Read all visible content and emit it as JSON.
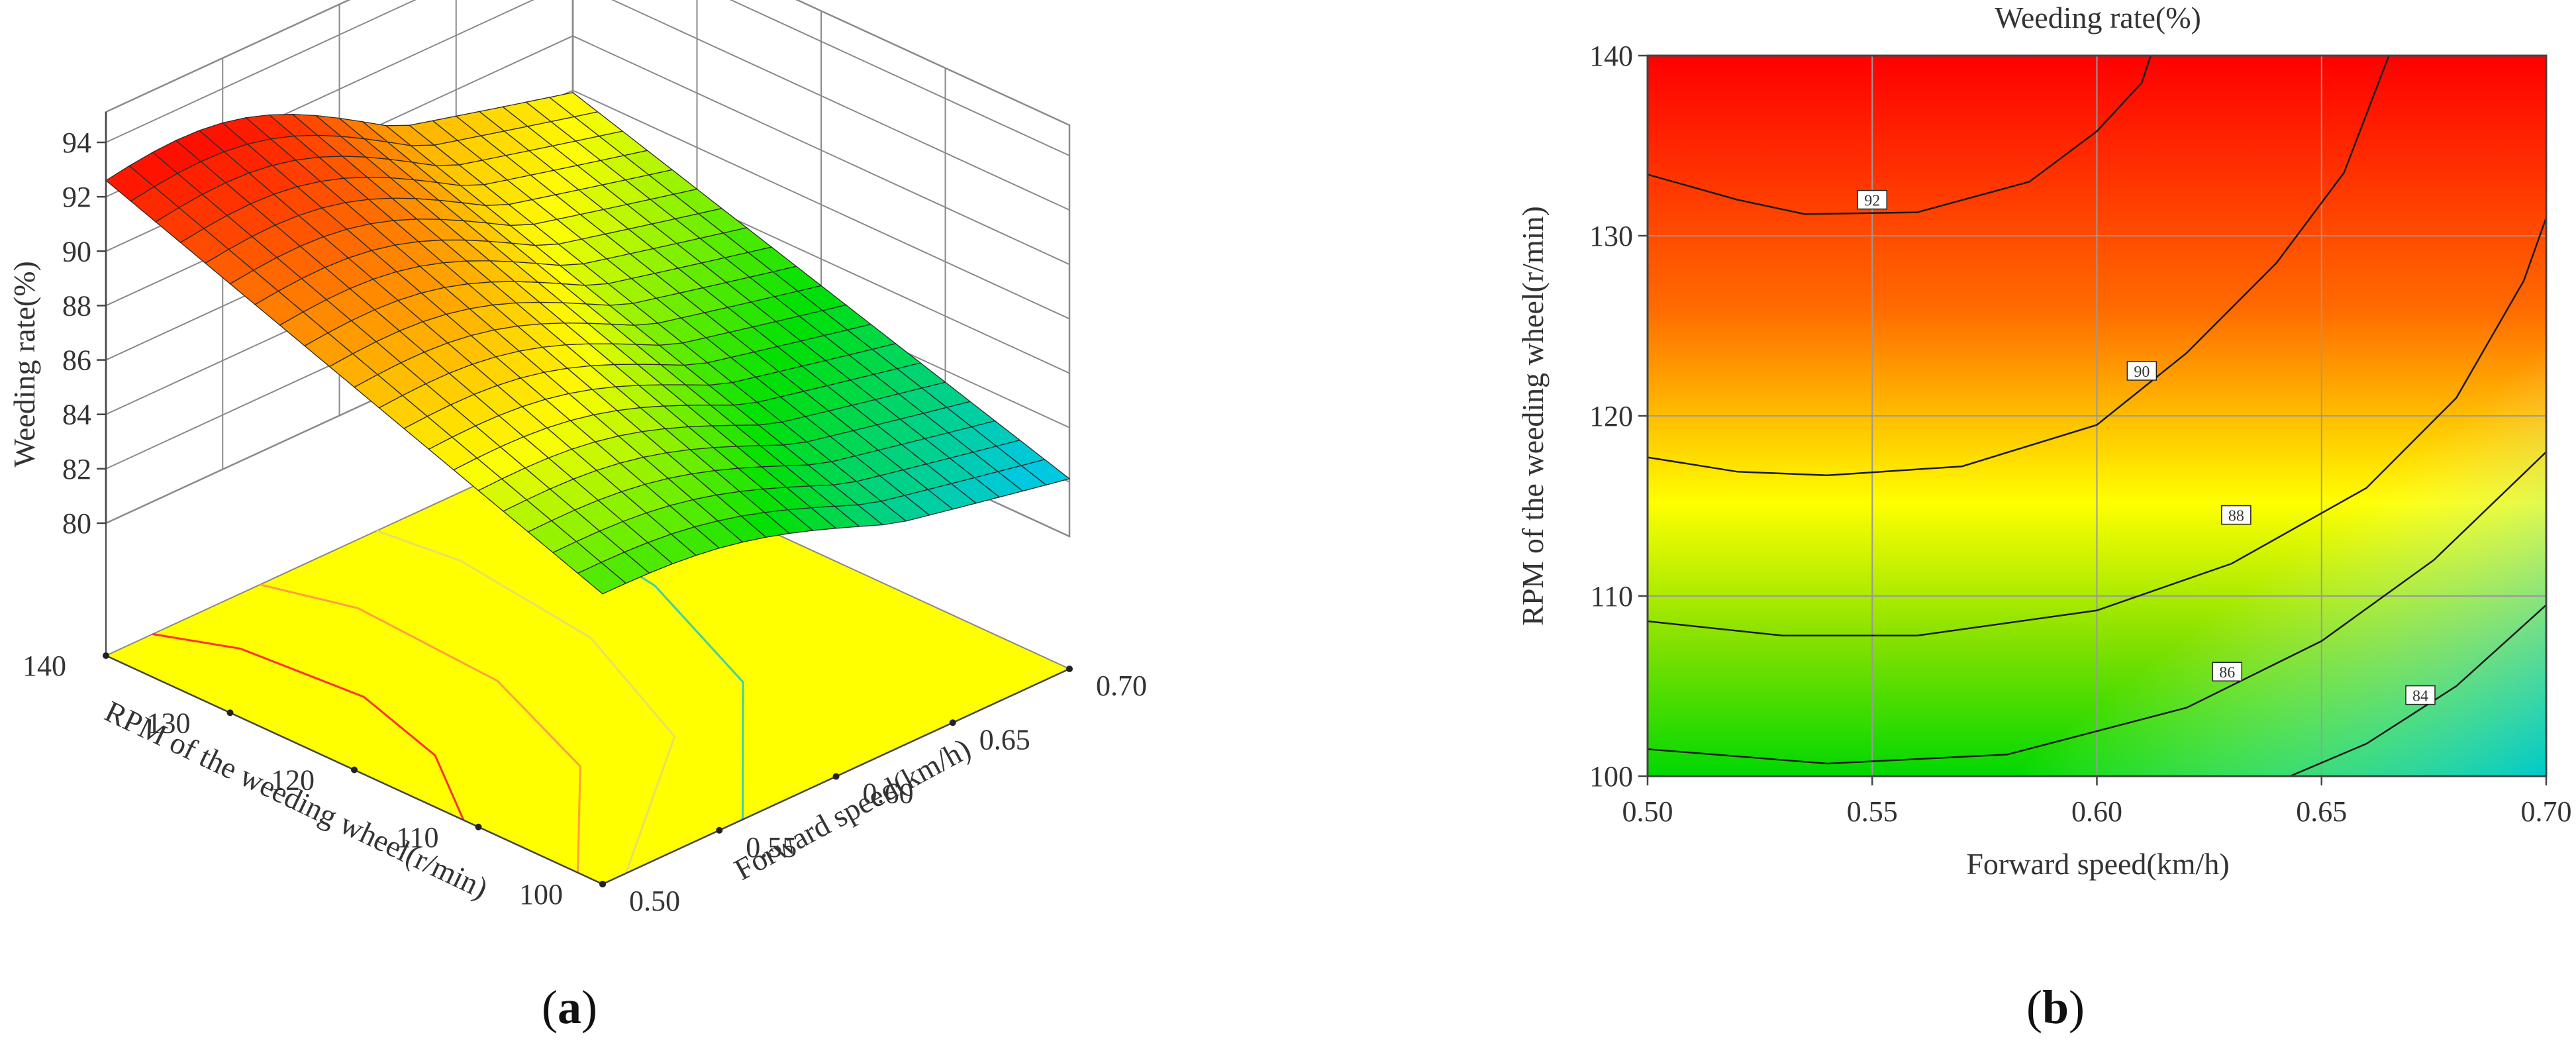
{
  "chart_data": [
    {
      "panel": "(a)",
      "type": "surface3d",
      "zlabel": "Weeding rate(%)",
      "xlabel": "Forward speed(km/h)",
      "ylabel": "RPM of the weeding wheel(r/min)",
      "x_ticks": [
        "0.50",
        "0.55",
        "0.60",
        "0.65",
        "0.70"
      ],
      "y_ticks": [
        "100",
        "110",
        "120",
        "130",
        "140"
      ],
      "z_ticks": [
        "80",
        "82",
        "84",
        "86",
        "88",
        "90",
        "92",
        "94"
      ],
      "xlim": [
        0.5,
        0.7
      ],
      "ylim": [
        100,
        140
      ],
      "zlim": [
        80,
        94
      ],
      "corner_values": [
        {
          "x": 0.5,
          "y": 140,
          "z": 92.6
        },
        {
          "x": 0.5,
          "y": 100,
          "z": 85.8
        },
        {
          "x": 0.7,
          "y": 140,
          "z": 88.4
        },
        {
          "x": 0.7,
          "y": 100,
          "z": 82.6
        }
      ],
      "colormap": [
        "#00c8e0",
        "#00e000",
        "#ffff00",
        "#ff8000",
        "#ff0000"
      ]
    },
    {
      "panel": "(b)",
      "type": "contour",
      "title": "Weeding rate(%)",
      "xlabel": "Forward speed(km/h)",
      "ylabel": "RPM of the weeding wheel(r/min)",
      "x_ticks": [
        "0.50",
        "0.55",
        "0.60",
        "0.65",
        "0.70"
      ],
      "y_ticks": [
        "100",
        "110",
        "120",
        "130",
        "140"
      ],
      "xlim": [
        0.5,
        0.7
      ],
      "ylim": [
        100,
        140
      ],
      "contour_levels": [
        {
          "label": "92",
          "label_at": {
            "x": 0.55,
            "y": 132
          }
        },
        {
          "label": "90",
          "label_at": {
            "x": 0.61,
            "y": 122.5
          }
        },
        {
          "label": "88",
          "label_at": {
            "x": 0.631,
            "y": 114.5
          }
        },
        {
          "label": "86",
          "label_at": {
            "x": 0.629,
            "y": 105.8
          }
        },
        {
          "label": "84",
          "label_at": {
            "x": 0.672,
            "y": 104.5
          }
        }
      ],
      "grid": true,
      "colormap": [
        "#00c8e0",
        "#00e000",
        "#ffff00",
        "#ff8000",
        "#ff0000"
      ]
    }
  ],
  "captions": {
    "a": {
      "open": "(",
      "letter": "a",
      "close": ")"
    },
    "b": {
      "open": "(",
      "letter": "b",
      "close": ")"
    }
  }
}
